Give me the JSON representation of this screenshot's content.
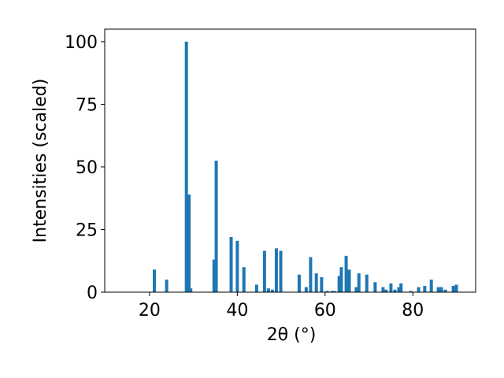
{
  "chart_data": {
    "type": "bar",
    "xlabel": "2θ (°)",
    "ylabel": "Intensities (scaled)",
    "x": [
      21.1,
      23.9,
      28.4,
      29.0,
      29.4,
      34.7,
      35.2,
      38.6,
      40.0,
      41.5,
      44.4,
      46.2,
      47.1,
      48.0,
      48.9,
      49.9,
      54.1,
      55.7,
      56.7,
      58.0,
      59.2,
      60.5,
      61.6,
      62.1,
      63.2,
      63.7,
      64.8,
      65.5,
      67.1,
      67.7,
      69.5,
      71.4,
      73.2,
      73.9,
      75.0,
      75.9,
      76.8,
      77.3,
      79.5,
      81.3,
      82.7,
      84.2,
      85.8,
      86.5,
      87.4,
      89.2,
      89.9
    ],
    "values": [
      9,
      5,
      100,
      39,
      1.5,
      13,
      52.5,
      22,
      20.5,
      10,
      3,
      16.5,
      1.5,
      1,
      17.5,
      16.5,
      7,
      2,
      14,
      7.5,
      6,
      0.5,
      0.5,
      0.5,
      6.5,
      10,
      14.5,
      9,
      2,
      7.5,
      7,
      4,
      2,
      1,
      3.5,
      1,
      2,
      3.5,
      0.5,
      2,
      2.5,
      5,
      2,
      2,
      1,
      2.5,
      3
    ],
    "color": "#1f77b4",
    "xlim": [
      9.8,
      94.3
    ],
    "xticks": [
      20,
      40,
      60,
      80
    ],
    "ylim": [
      0,
      105
    ],
    "yticks": [
      0,
      25,
      50,
      75,
      100
    ]
  }
}
